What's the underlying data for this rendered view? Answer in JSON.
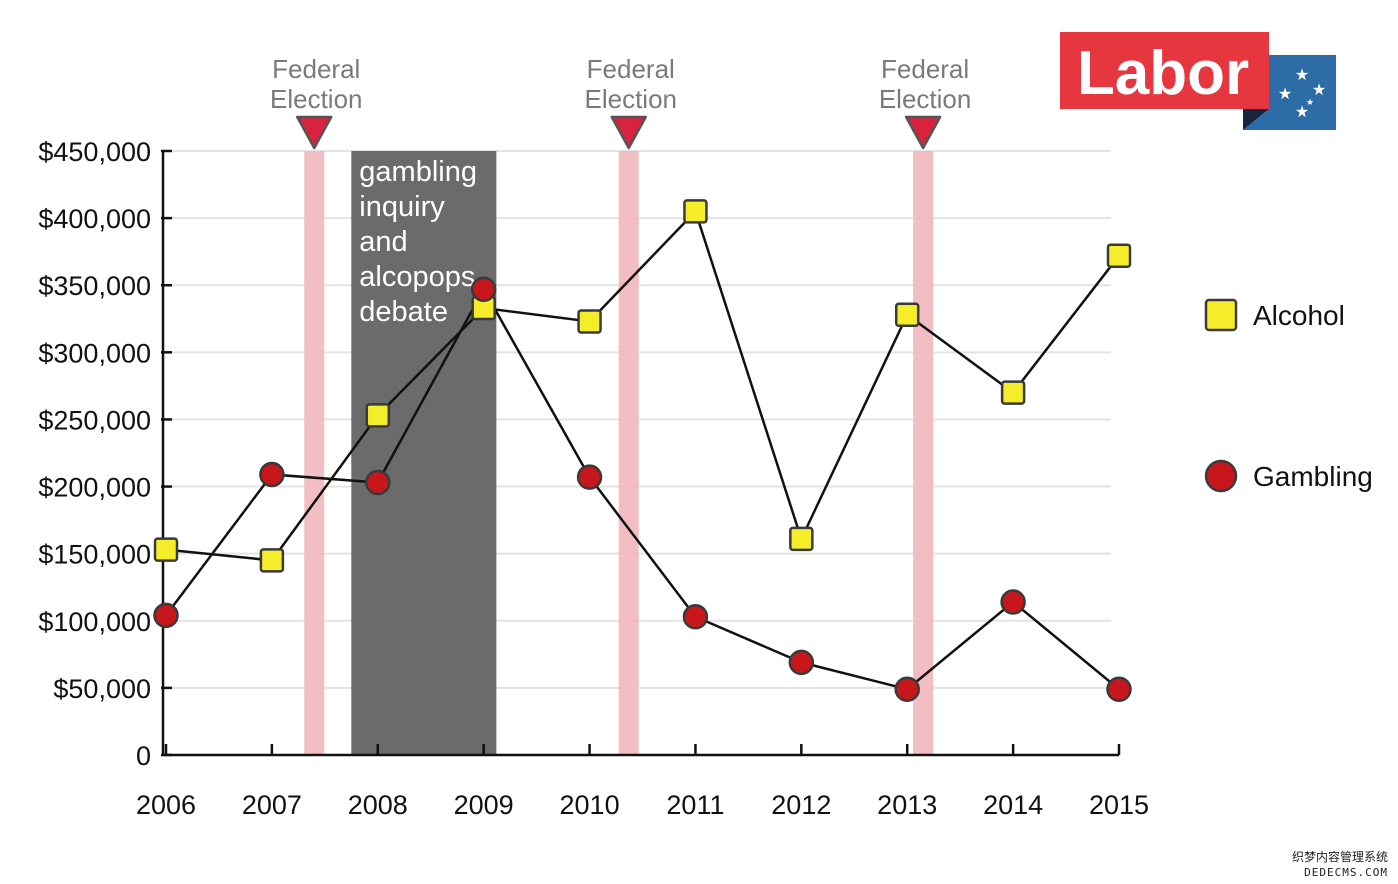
{
  "chart_data": {
    "type": "line",
    "x": [
      "2006",
      "2007",
      "2008",
      "2009",
      "2010",
      "2011",
      "2012",
      "2013",
      "2014",
      "2015"
    ],
    "ylim": [
      0,
      450000
    ],
    "yticks": [
      "0",
      "$50,000",
      "$100,000",
      "$150,000",
      "$200,000",
      "$250,000",
      "$300,000",
      "$350,000",
      "$400,000",
      "$450,000"
    ],
    "grid": true,
    "legend_position": "right",
    "series": [
      {
        "name": "Alcohol",
        "marker": "square",
        "color": "#f5ec2a",
        "values": [
          153000,
          145000,
          253000,
          333000,
          323000,
          405000,
          161000,
          328000,
          270000,
          372000
        ]
      },
      {
        "name": "Gambling",
        "marker": "circle",
        "color": "#c8161d",
        "values": [
          104000,
          209000,
          203000,
          347000,
          207000,
          103000,
          69000,
          49000,
          114000,
          49000
        ]
      }
    ],
    "annotations": [
      {
        "type": "election",
        "label_lines": [
          "Federal",
          "Election"
        ],
        "x": 2007.4
      },
      {
        "type": "election",
        "label_lines": [
          "Federal",
          "Election"
        ],
        "x": 2010.37
      },
      {
        "type": "election",
        "label_lines": [
          "Federal",
          "Election"
        ],
        "x": 2013.15
      },
      {
        "type": "period",
        "label_lines": [
          "gambling",
          "inquiry",
          "and",
          "alcopops",
          "debate"
        ],
        "x_start": 2007.75,
        "x_end": 2009.12
      }
    ]
  },
  "logo": {
    "text": "Labor",
    "brand_red": "#e63640",
    "brand_blue": "#2e6ca8"
  },
  "watermark": {
    "line1": "织梦内容管理系统",
    "line2": "DEDECMS.COM"
  }
}
